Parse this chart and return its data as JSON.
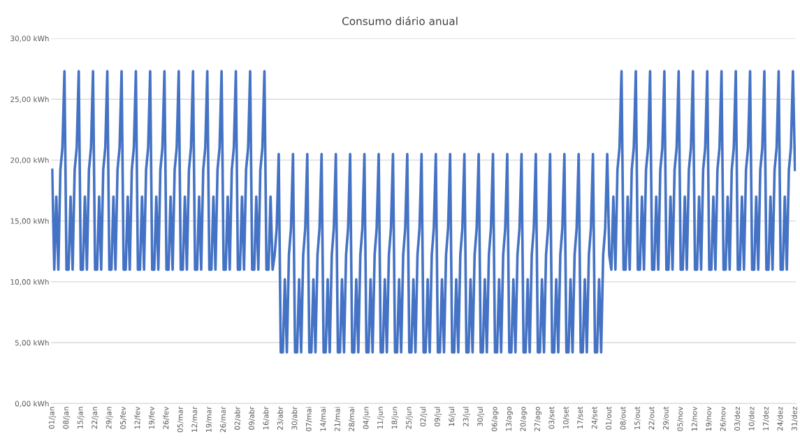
{
  "chart_data": {
    "type": "line",
    "title": "Consumo diário anual",
    "categories": [
      "01/jan",
      null,
      null,
      null,
      null,
      null,
      null,
      "08/jan",
      null,
      null,
      null,
      null,
      null,
      null,
      "15/jan",
      null,
      null,
      null,
      null,
      null,
      null,
      "22/jan",
      null,
      null,
      null,
      null,
      null,
      null,
      "29/jan",
      null,
      null,
      null,
      null,
      null,
      null,
      "05/fev",
      null,
      null,
      null,
      null,
      null,
      null,
      "12/fev",
      null,
      null,
      null,
      null,
      null,
      null,
      "19/fev",
      null,
      null,
      null,
      null,
      null,
      null,
      "26/fev",
      null,
      null,
      null,
      null,
      null,
      null,
      "05/mar",
      null,
      null,
      null,
      null,
      null,
      null,
      "12/mar",
      null,
      null,
      null,
      null,
      null,
      null,
      "19/mar",
      null,
      null,
      null,
      null,
      null,
      null,
      "26/mar",
      null,
      null,
      null,
      null,
      null,
      null,
      "02/abr",
      null,
      null,
      null,
      null,
      null,
      null,
      "09/abr",
      null,
      null,
      null,
      null,
      null,
      null,
      "16/abr",
      null,
      null,
      null,
      null,
      null,
      null,
      "23/abr",
      null,
      null,
      null,
      null,
      null,
      null,
      "30/abr",
      null,
      null,
      null,
      null,
      null,
      null,
      "07/mai",
      null,
      null,
      null,
      null,
      null,
      null,
      "14/mai",
      null,
      null,
      null,
      null,
      null,
      null,
      "21/mai",
      null,
      null,
      null,
      null,
      null,
      null,
      "28/mai",
      null,
      null,
      null,
      null,
      null,
      null,
      "04/jun",
      null,
      null,
      null,
      null,
      null,
      null,
      "11/jun",
      null,
      null,
      null,
      null,
      null,
      null,
      "18/jun",
      null,
      null,
      null,
      null,
      null,
      null,
      "25/jun",
      null,
      null,
      null,
      null,
      null,
      null,
      "02/jul",
      null,
      null,
      null,
      null,
      null,
      null,
      "09/jul",
      null,
      null,
      null,
      null,
      null,
      null,
      "16/jul",
      null,
      null,
      null,
      null,
      null,
      null,
      "23/jul",
      null,
      null,
      null,
      null,
      null,
      null,
      "30/jul",
      null,
      null,
      null,
      null,
      null,
      null,
      "06/ago",
      null,
      null,
      null,
      null,
      null,
      null,
      "13/ago",
      null,
      null,
      null,
      null,
      null,
      null,
      "20/ago",
      null,
      null,
      null,
      null,
      null,
      null,
      "27/ago",
      null,
      null,
      null,
      null,
      null,
      null,
      "03/set",
      null,
      null,
      null,
      null,
      null,
      null,
      "10/set",
      null,
      null,
      null,
      null,
      null,
      null,
      "17/set",
      null,
      null,
      null,
      null,
      null,
      null,
      "24/set",
      null,
      null,
      null,
      null,
      null,
      null,
      "01/out",
      null,
      null,
      null,
      null,
      null,
      null,
      "08/out",
      null,
      null,
      null,
      null,
      null,
      null,
      "15/out",
      null,
      null,
      null,
      null,
      null,
      null,
      "22/out",
      null,
      null,
      null,
      null,
      null,
      null,
      "29/out",
      null,
      null,
      null,
      null,
      null,
      null,
      "05/nov",
      null,
      null,
      null,
      null,
      null,
      null,
      "12/nov",
      null,
      null,
      null,
      null,
      null,
      null,
      "19/nov",
      null,
      null,
      null,
      null,
      null,
      null,
      "26/nov",
      null,
      null,
      null,
      null,
      null,
      null,
      "03/dez",
      null,
      null,
      null,
      null,
      null,
      null,
      "10/dez",
      null,
      null,
      null,
      null,
      null,
      null,
      "17/dez",
      null,
      null,
      null,
      null,
      null,
      null,
      "24/dez",
      null,
      null,
      null,
      null,
      null,
      null,
      "31/dez"
    ],
    "series": [
      {
        "color": "#4472c4",
        "values": [
          19.2,
          11,
          17,
          11,
          19.2,
          21,
          27.3,
          11,
          11,
          17,
          11,
          19.2,
          21,
          27.3,
          11,
          11,
          17,
          11,
          19.2,
          21,
          27.3,
          11,
          11,
          17,
          11,
          19.2,
          21,
          27.3,
          11,
          11,
          17,
          11,
          19.2,
          21,
          27.3,
          11,
          11,
          17,
          11,
          19.2,
          21,
          27.3,
          11,
          11,
          17,
          11,
          19.2,
          21,
          27.3,
          11,
          11,
          17,
          11,
          19.2,
          21,
          27.3,
          11,
          11,
          17,
          11,
          19.2,
          21,
          27.3,
          11,
          11,
          17,
          11,
          19.2,
          21,
          27.3,
          11,
          11,
          17,
          11,
          19.2,
          21,
          27.3,
          11,
          11,
          17,
          11,
          19.2,
          21,
          27.3,
          11,
          11,
          17,
          11,
          19.2,
          21,
          27.3,
          11,
          11,
          17,
          11,
          19.2,
          21,
          27.3,
          11,
          11,
          17,
          11,
          19.2,
          21,
          27.3,
          11,
          11,
          17,
          11,
          12.2,
          14.4,
          20.5,
          4.2,
          4.2,
          10.2,
          4.2,
          12.2,
          14.4,
          20.5,
          4.2,
          4.2,
          10.2,
          4.2,
          12.2,
          14.4,
          20.5,
          4.2,
          4.2,
          10.2,
          4.2,
          12.2,
          14.4,
          20.5,
          4.2,
          4.2,
          10.2,
          4.2,
          12.2,
          14.4,
          20.5,
          4.2,
          4.2,
          10.2,
          4.2,
          12.2,
          14.4,
          20.5,
          4.2,
          4.2,
          10.2,
          4.2,
          12.2,
          14.4,
          20.5,
          4.2,
          4.2,
          10.2,
          4.2,
          12.2,
          14.4,
          20.5,
          4.2,
          4.2,
          10.2,
          4.2,
          12.2,
          14.4,
          20.5,
          4.2,
          4.2,
          10.2,
          4.2,
          12.2,
          14.4,
          20.5,
          4.2,
          4.2,
          10.2,
          4.2,
          12.2,
          14.4,
          20.5,
          4.2,
          4.2,
          10.2,
          4.2,
          12.2,
          14.4,
          20.5,
          4.2,
          4.2,
          10.2,
          4.2,
          12.2,
          14.4,
          20.5,
          4.2,
          4.2,
          10.2,
          4.2,
          12.2,
          14.4,
          20.5,
          4.2,
          4.2,
          10.2,
          4.2,
          12.2,
          14.4,
          20.5,
          4.2,
          4.2,
          10.2,
          4.2,
          12.2,
          14.4,
          20.5,
          4.2,
          4.2,
          10.2,
          4.2,
          12.2,
          14.4,
          20.5,
          4.2,
          4.2,
          10.2,
          4.2,
          12.2,
          14.4,
          20.5,
          4.2,
          4.2,
          10.2,
          4.2,
          12.2,
          14.4,
          20.5,
          4.2,
          4.2,
          10.2,
          4.2,
          12.2,
          14.4,
          20.5,
          4.2,
          4.2,
          10.2,
          4.2,
          12.2,
          14.4,
          20.5,
          4.2,
          4.2,
          10.2,
          4.2,
          12.2,
          14.4,
          20.5,
          4.2,
          4.2,
          10.2,
          4.2,
          12.2,
          14.4,
          20.5,
          4.2,
          4.2,
          10.2,
          4.2,
          12.2,
          14.4,
          20.5,
          12.2,
          11,
          17,
          11,
          19.2,
          21,
          27.3,
          11,
          11,
          17,
          11,
          19.2,
          21,
          27.3,
          11,
          11,
          17,
          11,
          19.2,
          21,
          27.3,
          11,
          11,
          17,
          11,
          19.2,
          21,
          27.3,
          11,
          11,
          17,
          11,
          19.2,
          21,
          27.3,
          11,
          11,
          17,
          11,
          19.2,
          21,
          27.3,
          11,
          11,
          17,
          11,
          19.2,
          21,
          27.3,
          11,
          11,
          17,
          11,
          19.2,
          21,
          27.3,
          11,
          11,
          17,
          11,
          19.2,
          21,
          27.3,
          11,
          11,
          17,
          11,
          19.2,
          21,
          27.3,
          11,
          11,
          17,
          11,
          19.2,
          21,
          27.3,
          11,
          11,
          17,
          11,
          19.2,
          21,
          27.3,
          11,
          11,
          17,
          11,
          19.2,
          21,
          27.3,
          19.2
        ]
      }
    ],
    "ylim": [
      0,
      30
    ],
    "yticks": [
      {
        "value": 0,
        "label": "0,00 kWh"
      },
      {
        "value": 5,
        "label": "5,00 kWh"
      },
      {
        "value": 10,
        "label": "10,00 kWh"
      },
      {
        "value": 15,
        "label": "15,00 kWh"
      },
      {
        "value": 20,
        "label": "20,00 kWh"
      },
      {
        "value": 25,
        "label": "25,00 kWh"
      },
      {
        "value": 30,
        "label": "30,00 kWh"
      }
    ],
    "grid": "y",
    "marker": "none",
    "line_style": "solid"
  }
}
